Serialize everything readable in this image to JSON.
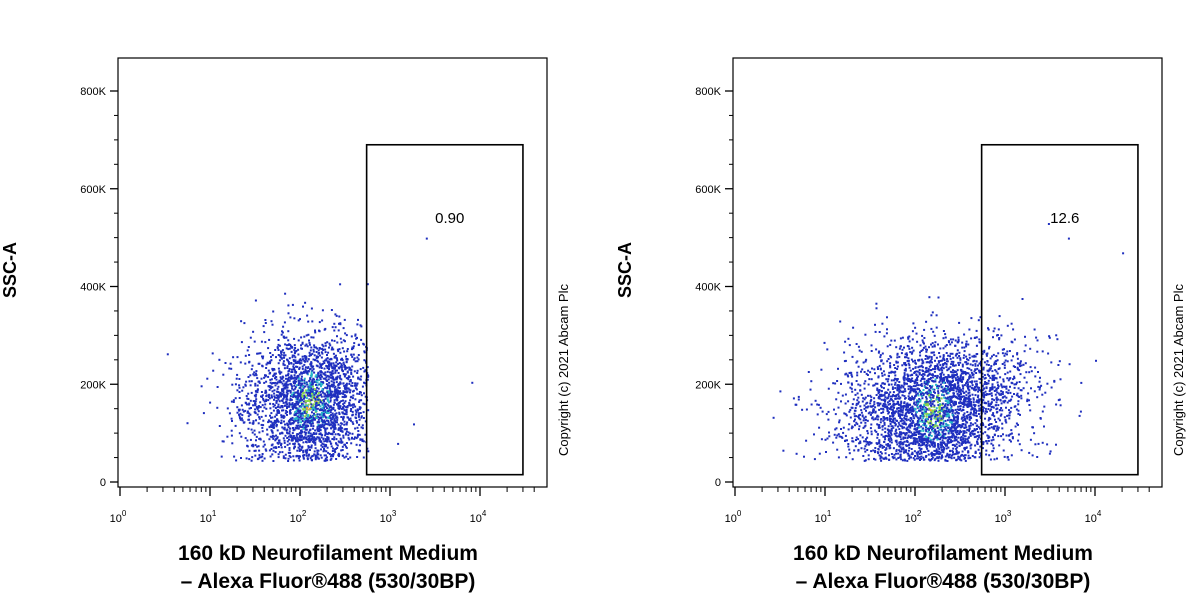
{
  "chart_data": [
    {
      "type": "scatter",
      "title": "",
      "xlabel_line1": "160 kD Neurofilament Medium",
      "xlabel_line2": "– Alexa Fluor®488 (530/30BP)",
      "ylabel": "SSC-A",
      "x_scale": "log",
      "xlim": [
        1,
        40000
      ],
      "ylim": [
        0,
        800000
      ],
      "y_tick_labels": [
        "0",
        "200K",
        "400K",
        "600K",
        "800K"
      ],
      "y_tick_values": [
        0,
        200000,
        400000,
        600000,
        800000
      ],
      "x_tick_values": [
        1,
        10,
        100,
        1000,
        10000
      ],
      "x_tick_base": "10",
      "x_tick_exponents": [
        "0",
        "1",
        "2",
        "3",
        "4"
      ],
      "gate": {
        "x_min": 550,
        "x_max": 30000,
        "y_min": 15000,
        "y_max": 690000,
        "label": "0.90"
      },
      "copyright": "Copyright (c) 2021 Abcam Plc",
      "population": {
        "x_center": 130,
        "y_center": 165000,
        "count": 2600,
        "outliers": [
          [
            2500,
            500000
          ],
          [
            8000,
            205000
          ],
          [
            1800,
            120000
          ],
          [
            1200,
            80000
          ]
        ]
      },
      "colors": {
        "dots": "#1f2fbf",
        "dense": "#27b8c9",
        "dense_core": "#8bd64a",
        "hot": "#f5a623"
      }
    },
    {
      "type": "scatter",
      "title": "",
      "xlabel_line1": "160 kD Neurofilament Medium",
      "xlabel_line2": "– Alexa Fluor®488 (530/30BP)",
      "ylabel": "SSC-A",
      "x_scale": "log",
      "xlim": [
        1,
        40000
      ],
      "ylim": [
        0,
        800000
      ],
      "y_tick_labels": [
        "0",
        "200K",
        "400K",
        "600K",
        "800K"
      ],
      "y_tick_values": [
        0,
        200000,
        400000,
        600000,
        800000
      ],
      "x_tick_values": [
        1,
        10,
        100,
        1000,
        10000
      ],
      "x_tick_base": "10",
      "x_tick_exponents": [
        "0",
        "1",
        "2",
        "3",
        "4"
      ],
      "gate": {
        "x_min": 550,
        "x_max": 30000,
        "y_min": 15000,
        "y_max": 690000,
        "label": "12.6"
      },
      "copyright": "Copyright (c) 2021 Abcam Plc",
      "population": {
        "x_center": 160,
        "y_center": 150000,
        "count": 3200,
        "outliers": [
          [
            5000,
            500000
          ],
          [
            20000,
            470000
          ],
          [
            3000,
            530000
          ],
          [
            10000,
            250000
          ]
        ]
      },
      "colors": {
        "dots": "#1f2fbf",
        "dense": "#27b8c9",
        "dense_core": "#8bd64a",
        "hot": "#f5a623"
      }
    }
  ]
}
